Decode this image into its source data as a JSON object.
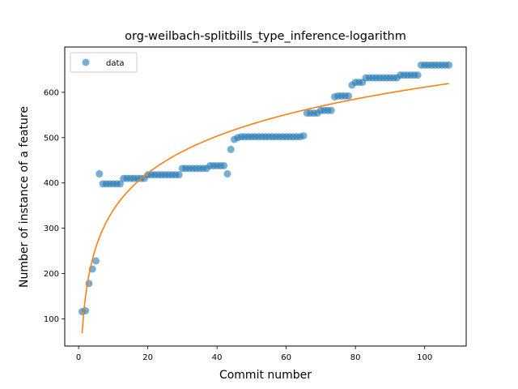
{
  "chart_data": {
    "type": "scatter",
    "title": "org-weilbach-splitbills_type_inference-logarithm",
    "xlabel": "Commit number",
    "ylabel": "Number of instance of a feature",
    "xlim": [
      -4,
      112
    ],
    "ylim": [
      40,
      700
    ],
    "xticks": [
      0,
      20,
      40,
      60,
      80,
      100
    ],
    "yticks": [
      100,
      200,
      300,
      400,
      500,
      600
    ],
    "legend": {
      "position": "top-left",
      "entries": [
        "data"
      ]
    },
    "grid": false,
    "colors": {
      "data": "#1f77b4",
      "fit": "#ff7f0e"
    },
    "series": [
      {
        "name": "data",
        "kind": "scatter",
        "x": [
          1,
          2,
          3,
          4,
          5,
          6,
          7,
          8,
          9,
          10,
          11,
          12,
          13,
          14,
          15,
          16,
          17,
          18,
          19,
          20,
          21,
          22,
          23,
          24,
          25,
          26,
          27,
          28,
          29,
          30,
          31,
          32,
          33,
          34,
          35,
          36,
          37,
          38,
          39,
          40,
          41,
          42,
          43,
          44,
          45,
          46,
          47,
          48,
          49,
          50,
          51,
          52,
          53,
          54,
          55,
          56,
          57,
          58,
          59,
          60,
          61,
          62,
          63,
          64,
          65,
          66,
          67,
          68,
          69,
          70,
          71,
          72,
          73,
          74,
          75,
          76,
          77,
          78,
          79,
          80,
          81,
          82,
          83,
          84,
          85,
          86,
          87,
          88,
          89,
          90,
          91,
          92,
          93,
          94,
          95,
          96,
          97,
          98,
          99,
          100,
          101,
          102,
          103,
          104,
          105,
          106,
          107
        ],
        "y": [
          116,
          118,
          178,
          210,
          228,
          420,
          398,
          398,
          398,
          398,
          398,
          398,
          410,
          410,
          410,
          410,
          410,
          410,
          410,
          418,
          418,
          418,
          418,
          418,
          418,
          418,
          418,
          418,
          418,
          432,
          432,
          432,
          432,
          432,
          432,
          432,
          432,
          438,
          438,
          438,
          438,
          438,
          420,
          474,
          496,
          500,
          502,
          502,
          502,
          502,
          502,
          502,
          502,
          502,
          502,
          502,
          502,
          502,
          502,
          502,
          502,
          502,
          502,
          502,
          504,
          554,
          554,
          554,
          554,
          560,
          560,
          560,
          560,
          590,
          592,
          592,
          592,
          592,
          616,
          622,
          622,
          622,
          632,
          632,
          632,
          632,
          632,
          632,
          632,
          632,
          632,
          632,
          638,
          638,
          638,
          638,
          638,
          638,
          660,
          660,
          660,
          660,
          660,
          660,
          660,
          660,
          660
        ]
      },
      {
        "kind": "fit-line",
        "model": "y = a + b*ln(x)",
        "a": 68,
        "b": 118,
        "x_range": [
          1,
          107
        ]
      }
    ]
  }
}
